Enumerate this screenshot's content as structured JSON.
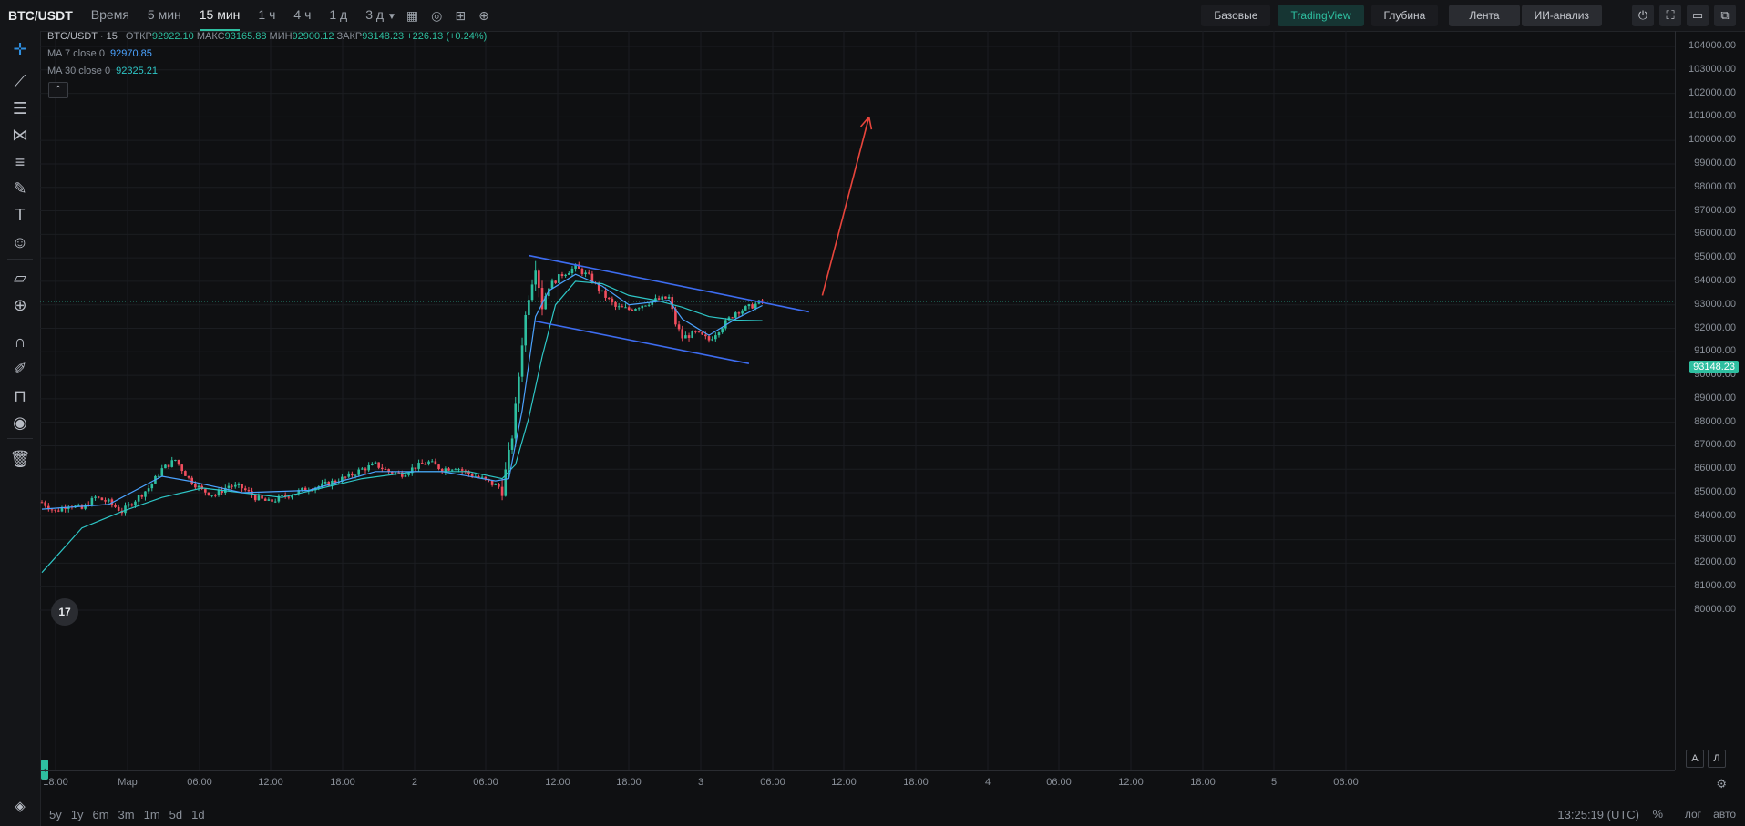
{
  "topbar": {
    "symbol": "BTC/USDT",
    "timeframes": [
      "Время",
      "5 мин",
      "15 мин",
      "1 ч",
      "4 ч",
      "1 д",
      "3 д"
    ],
    "active_timeframe": "15 мин",
    "dropdown_icon": "chevron-down-icon",
    "tool_icons": [
      "indicator-chart-icon",
      "settings-circle-icon",
      "compare-icon",
      "add-circle-icon"
    ],
    "views": [
      "Базовые",
      "TradingView",
      "Глубина"
    ],
    "active_view": "TradingView",
    "extra_buttons": [
      "Лента",
      "ИИ-анализ"
    ],
    "window_icons": [
      "power-icon",
      "fullscreen-icon",
      "layout-icon",
      "screenshot-icon"
    ]
  },
  "left_tools": [
    "crosshair-icon",
    "trend-line-icon",
    "horizontal-lines-icon",
    "pattern-icon",
    "fib-icon",
    "brush-icon",
    "text-icon",
    "emoji-icon",
    "ruler-icon",
    "zoom-in-icon",
    "magnet-icon",
    "lock-draw-icon",
    "lock-icon",
    "eye-icon",
    "trash-icon"
  ],
  "legend": {
    "symbol": "BTC/USDT · 15",
    "open_label": "ОТКР",
    "open": "92922.10",
    "high_label": "МАКС",
    "high": "93165.88",
    "low_label": "МИН",
    "low": "92900.12",
    "close_label": "ЗАКР",
    "close": "93148.23",
    "change": "+226.13 (+0.24%)",
    "ma7_label": "MA 7 close 0",
    "ma7_value": "92970.85",
    "ma30_label": "MA 30 close 0",
    "ma30_value": "92325.21",
    "collapse_icon": "chevron-up-icon"
  },
  "logo_text": "17",
  "colors": {
    "up": "#2ebfa0",
    "down": "#f04e5e",
    "ma7": "#4ba3ff",
    "ma30": "#2ec6c6",
    "channel": "#3d6cf0",
    "arrow": "#e8453c"
  },
  "price_tag": "93148.23",
  "mode_buttons": [
    "A",
    "Л"
  ],
  "axis_settings_icon": "settings-icon",
  "bottombar": {
    "ranges": [
      "5y",
      "1y",
      "6m",
      "3m",
      "1m",
      "5d",
      "1d"
    ],
    "time": "13:25:19 (UTC)",
    "percent": "%",
    "log": "лог",
    "auto": "авто"
  },
  "chart_data": {
    "type": "candlestick",
    "title": "",
    "y_ticks": [
      "104000.00",
      "103000.00",
      "102000.00",
      "101000.00",
      "100000.00",
      "99000.00",
      "98000.00",
      "97000.00",
      "96000.00",
      "95000.00",
      "94000.00",
      "93000.00",
      "92000.00",
      "91000.00",
      "90000.00",
      "89000.00",
      "88000.00",
      "87000.00",
      "86000.00",
      "85000.00",
      "84000.00",
      "83000.00",
      "82000.00",
      "81000.00",
      "80000.00"
    ],
    "x_ticks": [
      "18:00",
      "Мар",
      "06:00",
      "12:00",
      "18:00",
      "2",
      "06:00",
      "12:00",
      "18:00",
      "3",
      "06:00",
      "12:00",
      "18:00",
      "4",
      "06:00",
      "12:00",
      "18:00",
      "5",
      "06:00"
    ],
    "last_price": 93148.23,
    "price_path": [
      [
        0,
        84600
      ],
      [
        4,
        84200
      ],
      [
        8,
        84500
      ],
      [
        12,
        84300
      ],
      [
        16,
        84800
      ],
      [
        20,
        84600
      ],
      [
        24,
        84200
      ],
      [
        28,
        84700
      ],
      [
        32,
        85200
      ],
      [
        36,
        86000
      ],
      [
        40,
        86400
      ],
      [
        44,
        85600
      ],
      [
        48,
        85100
      ],
      [
        52,
        84900
      ],
      [
        56,
        85300
      ],
      [
        60,
        85200
      ],
      [
        64,
        84800
      ],
      [
        68,
        84600
      ],
      [
        72,
        84800
      ],
      [
        76,
        85000
      ],
      [
        80,
        85200
      ],
      [
        84,
        85300
      ],
      [
        88,
        85500
      ],
      [
        92,
        85700
      ],
      [
        96,
        86000
      ],
      [
        100,
        86200
      ],
      [
        104,
        85900
      ],
      [
        108,
        85800
      ],
      [
        112,
        86100
      ],
      [
        116,
        86300
      ],
      [
        120,
        86000
      ],
      [
        124,
        86100
      ],
      [
        128,
        85800
      ],
      [
        132,
        85600
      ],
      [
        136,
        85300
      ],
      [
        138,
        85200
      ],
      [
        140,
        86500
      ],
      [
        142,
        88500
      ],
      [
        144,
        91500
      ],
      [
        146,
        93500
      ],
      [
        148,
        94800
      ],
      [
        150,
        93000
      ],
      [
        152,
        93800
      ],
      [
        156,
        94300
      ],
      [
        160,
        94600
      ],
      [
        164,
        94200
      ],
      [
        168,
        93500
      ],
      [
        172,
        92900
      ],
      [
        176,
        92800
      ],
      [
        180,
        93000
      ],
      [
        184,
        93200
      ],
      [
        188,
        93300
      ],
      [
        190,
        92200
      ],
      [
        192,
        91600
      ],
      [
        196,
        91800
      ],
      [
        200,
        91500
      ],
      [
        204,
        92100
      ],
      [
        208,
        92700
      ],
      [
        212,
        92900
      ],
      [
        216,
        93148
      ]
    ],
    "ma7_path": [
      [
        0,
        84300
      ],
      [
        20,
        84500
      ],
      [
        36,
        85700
      ],
      [
        44,
        85500
      ],
      [
        60,
        85000
      ],
      [
        80,
        85100
      ],
      [
        100,
        85900
      ],
      [
        120,
        85900
      ],
      [
        136,
        85500
      ],
      [
        140,
        85600
      ],
      [
        144,
        88500
      ],
      [
        148,
        92500
      ],
      [
        152,
        93600
      ],
      [
        160,
        94300
      ],
      [
        168,
        93800
      ],
      [
        176,
        93000
      ],
      [
        188,
        93200
      ],
      [
        192,
        92400
      ],
      [
        200,
        91700
      ],
      [
        208,
        92400
      ],
      [
        216,
        92970
      ]
    ],
    "ma30_path": [
      [
        0,
        81600
      ],
      [
        12,
        83500
      ],
      [
        24,
        84200
      ],
      [
        36,
        84800
      ],
      [
        48,
        85200
      ],
      [
        60,
        85000
      ],
      [
        72,
        84800
      ],
      [
        84,
        85200
      ],
      [
        96,
        85600
      ],
      [
        112,
        85900
      ],
      [
        128,
        85900
      ],
      [
        138,
        85600
      ],
      [
        142,
        86200
      ],
      [
        146,
        88200
      ],
      [
        150,
        90800
      ],
      [
        154,
        93000
      ],
      [
        160,
        94000
      ],
      [
        168,
        93900
      ],
      [
        176,
        93400
      ],
      [
        184,
        93200
      ],
      [
        192,
        92900
      ],
      [
        200,
        92500
      ],
      [
        208,
        92350
      ],
      [
        216,
        92325
      ]
    ],
    "channel_upper": [
      [
        146,
        95100
      ],
      [
        230,
        92700
      ]
    ],
    "channel_lower": [
      [
        148,
        92300
      ],
      [
        212,
        90500
      ]
    ],
    "arrow": [
      [
        234,
        93400
      ],
      [
        248,
        101000
      ]
    ]
  }
}
